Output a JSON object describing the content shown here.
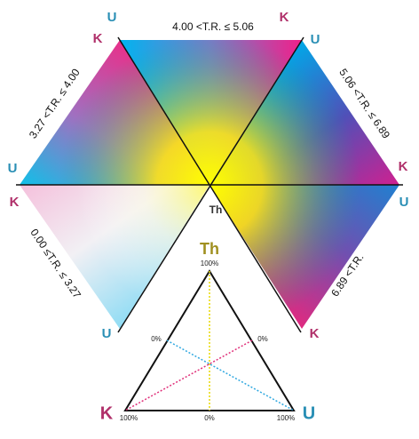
{
  "center_label": "Th",
  "sectors": [
    {
      "range": "4.00 <T.R. ≤ 5.06",
      "corners": [
        "U",
        "K"
      ]
    },
    {
      "range": "3.27 <T.R. ≤ 4.00",
      "corners": [
        "U",
        "K"
      ]
    },
    {
      "range": "5.06 <T.R. ≤ 6.89",
      "corners": [
        "U",
        "K"
      ]
    },
    {
      "range": "0.00 ≤T.R. ≤ 3.27",
      "corners": [
        "K",
        "U"
      ]
    },
    {
      "range": "6.89 <T.R.",
      "corners": [
        "U",
        "K"
      ]
    }
  ],
  "legend": {
    "top": "Th",
    "left": "K",
    "right": "U",
    "ticks": {
      "top": "100%",
      "left_side": "0%",
      "right_side": "0%",
      "bottom_left": "100%",
      "bottom_middle": "0%",
      "bottom_right": "100%"
    }
  }
}
